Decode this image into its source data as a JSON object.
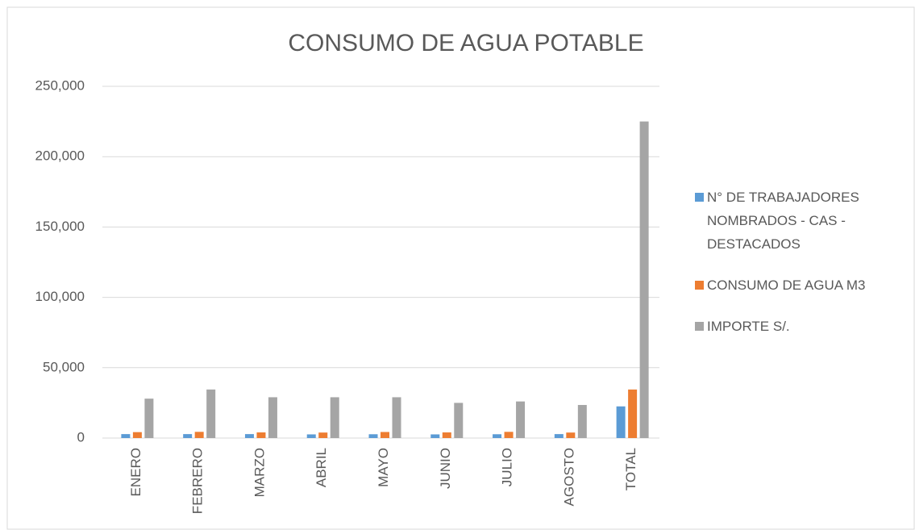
{
  "chart_data": {
    "type": "bar",
    "title": "CONSUMO DE AGUA POTABLE",
    "categories": [
      "ENERO",
      "FEBRERO",
      "MARZO",
      "ABRIL",
      "MAYO",
      "JUNIO",
      "JULIO",
      "AGOSTO",
      "TOTAL"
    ],
    "series": [
      {
        "name": "N° DE TRABAJADORES NOMBRADOS - CAS - DESTACADOS",
        "color": "#5b9bd5",
        "values": [
          2800,
          2800,
          2800,
          2600,
          2700,
          2600,
          2700,
          2800,
          22500
        ]
      },
      {
        "name": "CONSUMO DE AGUA M3",
        "color": "#ed7d31",
        "values": [
          4200,
          4400,
          4000,
          3900,
          4300,
          4000,
          4400,
          3900,
          34500
        ]
      },
      {
        "name": "IMPORTE S/.",
        "color": "#a5a5a5",
        "values": [
          28000,
          34500,
          29000,
          29000,
          29000,
          25000,
          26000,
          23500,
          225000
        ]
      }
    ],
    "ylim": [
      0,
      250000
    ],
    "yticks": [
      0,
      {
        "value": 50000,
        "label": "50,000"
      },
      {
        "value": 100000,
        "label": "100,000"
      },
      {
        "value": 150000,
        "label": "150,000"
      },
      {
        "value": 200000,
        "label": "200,000"
      },
      {
        "value": 250000,
        "label": "250,000"
      }
    ],
    "grid": true,
    "legend": "right"
  }
}
